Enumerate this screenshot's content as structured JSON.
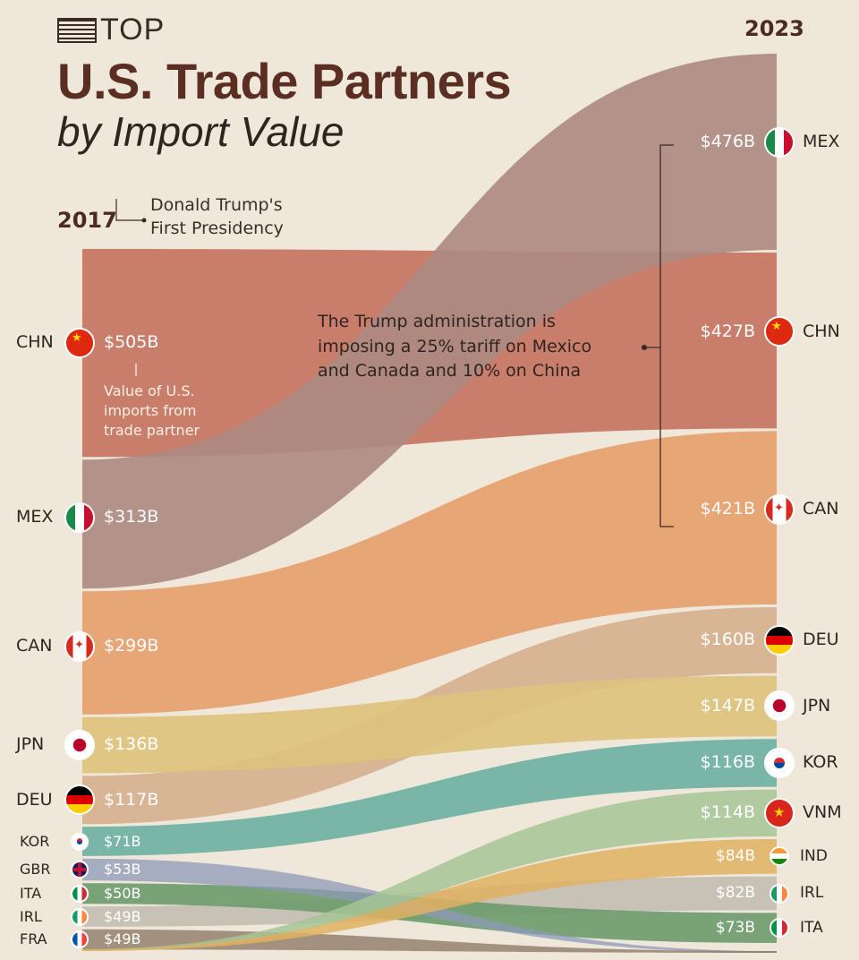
{
  "header": {
    "top_label": "TOP",
    "title": "U.S. Trade Partners",
    "subtitle": "by Import Value"
  },
  "labels": {
    "year_left": "2017",
    "presidency_line1": "Donald Trump's",
    "presidency_line2": "First Presidency",
    "year_right": "2023",
    "annotation_line1": "The Trump administration is",
    "annotation_line2": "imposing a 25% tariff on Mexico",
    "annotation_line3": "and Canada and 10% on China",
    "value_note_line1": "Value of U.S.",
    "value_note_line2": "imports from",
    "value_note_line3": "trade partner"
  },
  "chart_data": {
    "type": "sankey",
    "unit": "B USD",
    "left_year": "2017",
    "right_year": "2023",
    "left": [
      {
        "code": "CHN",
        "label": "$505B",
        "value": 505,
        "color": "#c67463",
        "flag": "china-flag-icon"
      },
      {
        "code": "MEX",
        "label": "$313B",
        "value": 313,
        "color": "#ad8a82",
        "flag": "mexico-flag-icon"
      },
      {
        "code": "CAN",
        "label": "$299B",
        "value": 299,
        "color": "#e6a06d",
        "flag": "canada-flag-icon"
      },
      {
        "code": "JPN",
        "label": "$136B",
        "value": 136,
        "color": "#ddc27e",
        "flag": "japan-flag-icon"
      },
      {
        "code": "DEU",
        "label": "$117B",
        "value": 117,
        "color": "#d5b08f",
        "flag": "germany-flag-icon"
      },
      {
        "code": "KOR",
        "label": "$71B",
        "value": 71,
        "color": "#6fb1a3",
        "flag": "korea-flag-icon"
      },
      {
        "code": "GBR",
        "label": "$53B",
        "value": 53,
        "color": "#8e9ab8",
        "flag": "uk-flag-icon"
      },
      {
        "code": "ITA",
        "label": "$50B",
        "value": 50,
        "color": "#6f9c6f",
        "flag": "italy-flag-icon"
      },
      {
        "code": "IRL",
        "label": "$49B",
        "value": 49,
        "color": "#c4bdb3",
        "flag": "ireland-flag-icon"
      },
      {
        "code": "FRA",
        "label": "$49B",
        "value": 49,
        "color": "#8a7460",
        "flag": "france-flag-icon"
      }
    ],
    "right": [
      {
        "code": "MEX",
        "label": "$476B",
        "value": 476,
        "color": "#ad8a82",
        "flag": "mexico-flag-icon"
      },
      {
        "code": "CHN",
        "label": "$427B",
        "value": 427,
        "color": "#c67463",
        "flag": "china-flag-icon"
      },
      {
        "code": "CAN",
        "label": "$421B",
        "value": 421,
        "color": "#e6a06d",
        "flag": "canada-flag-icon"
      },
      {
        "code": "DEU",
        "label": "$160B",
        "value": 160,
        "color": "#d5b08f",
        "flag": "germany-flag-icon"
      },
      {
        "code": "JPN",
        "label": "$147B",
        "value": 147,
        "color": "#ddc27e",
        "flag": "japan-flag-icon"
      },
      {
        "code": "KOR",
        "label": "$116B",
        "value": 116,
        "color": "#6fb1a3",
        "flag": "korea-flag-icon"
      },
      {
        "code": "VNM",
        "label": "$114B",
        "value": 114,
        "color": "#a7c495",
        "flag": "vietnam-flag-icon"
      },
      {
        "code": "IND",
        "label": "$84B",
        "value": 84,
        "color": "#e0b262",
        "flag": "india-flag-icon"
      },
      {
        "code": "IRL",
        "label": "$82B",
        "value": 82,
        "color": "#c4bdb3",
        "flag": "ireland-flag-icon"
      },
      {
        "code": "ITA",
        "label": "$73B",
        "value": 73,
        "color": "#6f9c6f",
        "flag": "italy-flag-icon"
      }
    ]
  }
}
